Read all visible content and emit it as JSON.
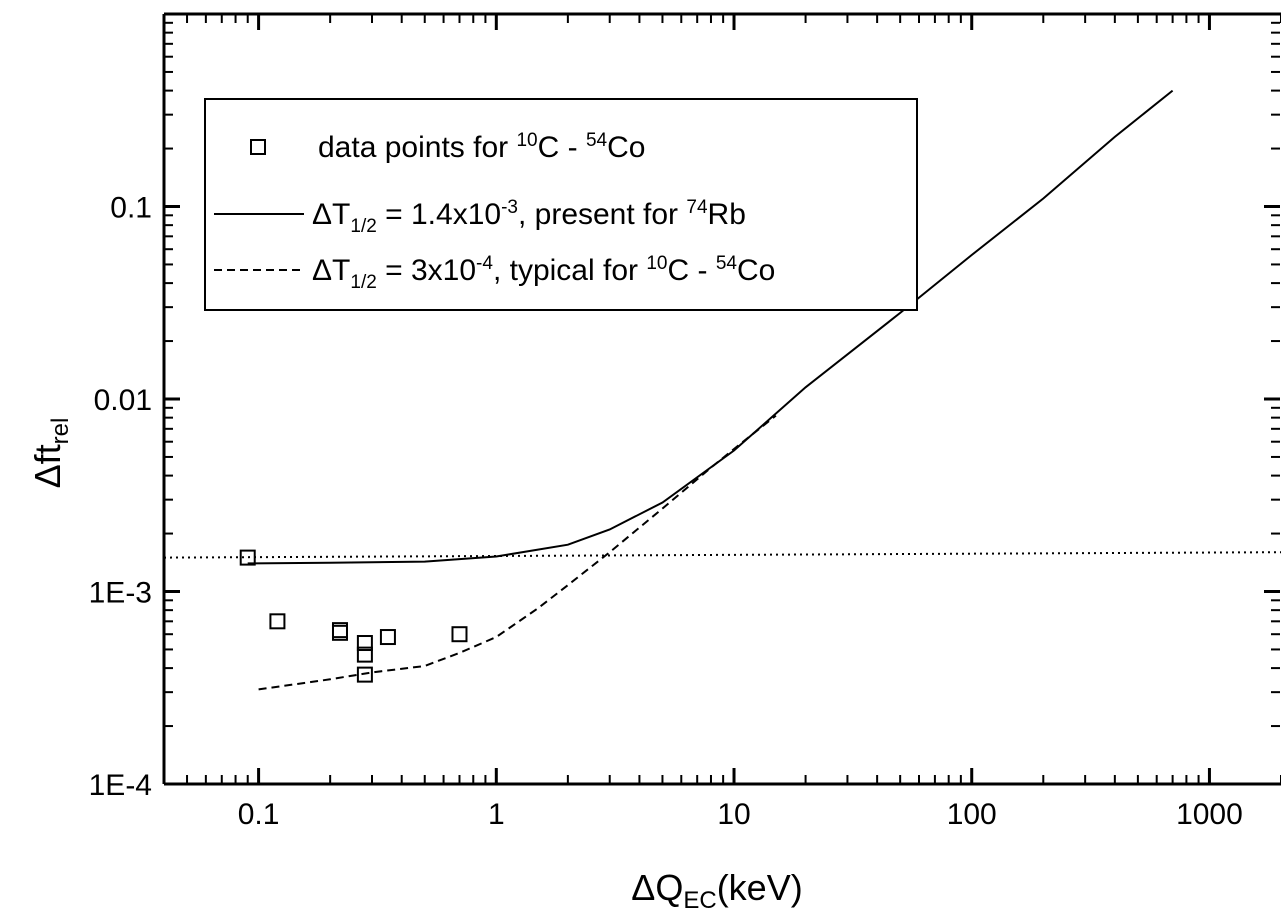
{
  "chart_data": {
    "type": "line",
    "xlabel": {
      "main": "ΔQ",
      "sub": "EC",
      "unit": "(keV)"
    },
    "ylabel": {
      "main": "Δft",
      "sub": "rel"
    },
    "xscale": "log",
    "yscale": "log",
    "xlim": [
      0.04,
      2000
    ],
    "ylim": [
      0.0001,
      1
    ],
    "x_ticks": [
      {
        "value": 0.1,
        "label": "0.1"
      },
      {
        "value": 1,
        "label": "1"
      },
      {
        "value": 10,
        "label": "10"
      },
      {
        "value": 100,
        "label": "100"
      },
      {
        "value": 1000,
        "label": "1000"
      }
    ],
    "y_ticks": [
      {
        "value": 0.0001,
        "label": "1E-4"
      },
      {
        "value": 0.001,
        "label": "1E-3"
      },
      {
        "value": 0.01,
        "label": "0.01"
      },
      {
        "value": 0.1,
        "label": "0.1"
      }
    ],
    "grid": false,
    "legend_position": "top-left",
    "legend": [
      {
        "style": "square-marker",
        "parts": [
          {
            "t": "data points for ",
            "sup": false,
            "sub": false
          },
          {
            "t": "10",
            "sup": true,
            "sub": false
          },
          {
            "t": "C - ",
            "sup": false,
            "sub": false
          },
          {
            "t": "54",
            "sup": true,
            "sub": false
          },
          {
            "t": "Co",
            "sup": false,
            "sub": false
          }
        ]
      },
      {
        "style": "solid",
        "parts": [
          {
            "t": "ΔT",
            "sup": false,
            "sub": false
          },
          {
            "t": "1/2",
            "sup": false,
            "sub": true
          },
          {
            "t": " = 1.4x10",
            "sup": false,
            "sub": false
          },
          {
            "t": "-3",
            "sup": true,
            "sub": false
          },
          {
            "t": ", present for ",
            "sup": false,
            "sub": false
          },
          {
            "t": "74",
            "sup": true,
            "sub": false
          },
          {
            "t": "Rb",
            "sup": false,
            "sub": false
          }
        ]
      },
      {
        "style": "dashed",
        "parts": [
          {
            "t": "ΔT",
            "sup": false,
            "sub": false
          },
          {
            "t": "1/2",
            "sup": false,
            "sub": true
          },
          {
            "t": " = 3x10",
            "sup": false,
            "sub": false
          },
          {
            "t": "-4",
            "sup": true,
            "sub": false
          },
          {
            "t": ", typical for ",
            "sup": false,
            "sub": false
          },
          {
            "t": "10",
            "sup": true,
            "sub": false
          },
          {
            "t": "C - ",
            "sup": false,
            "sub": false
          },
          {
            "t": "54",
            "sup": true,
            "sub": false
          },
          {
            "t": "Co",
            "sup": false,
            "sub": false
          }
        ]
      }
    ],
    "series": [
      {
        "style": "square-marker",
        "points": [
          [
            0.09,
            0.0015
          ],
          [
            0.12,
            0.0007
          ],
          [
            0.22,
            0.00063
          ],
          [
            0.22,
            0.00061
          ],
          [
            0.28,
            0.00054
          ],
          [
            0.28,
            0.00047
          ],
          [
            0.28,
            0.00037
          ],
          [
            0.35,
            0.00058
          ],
          [
            0.7,
            0.0006
          ]
        ]
      },
      {
        "style": "solid",
        "points": [
          [
            0.09,
            0.0014
          ],
          [
            0.2,
            0.00141
          ],
          [
            0.5,
            0.00143
          ],
          [
            1,
            0.00152
          ],
          [
            2,
            0.00175
          ],
          [
            3,
            0.0021
          ],
          [
            5,
            0.0029
          ],
          [
            10,
            0.0054
          ],
          [
            20,
            0.0115
          ],
          [
            50,
            0.028
          ],
          [
            100,
            0.056
          ],
          [
            200,
            0.11
          ],
          [
            400,
            0.23
          ],
          [
            700,
            0.4
          ]
        ]
      },
      {
        "style": "dashed",
        "points": [
          [
            0.1,
            0.00031
          ],
          [
            0.2,
            0.00035
          ],
          [
            0.3,
            0.00038
          ],
          [
            0.5,
            0.00041
          ],
          [
            0.7,
            0.00048
          ],
          [
            1,
            0.00058
          ],
          [
            1.5,
            0.00082
          ],
          [
            2,
            0.00108
          ],
          [
            3,
            0.0016
          ],
          [
            5,
            0.0027
          ],
          [
            8,
            0.0044
          ],
          [
            10,
            0.0055
          ],
          [
            15,
            0.0082
          ]
        ]
      },
      {
        "style": "dotted",
        "points": [
          [
            0.04,
            0.0015
          ],
          [
            2000,
            0.0016
          ]
        ]
      }
    ]
  }
}
